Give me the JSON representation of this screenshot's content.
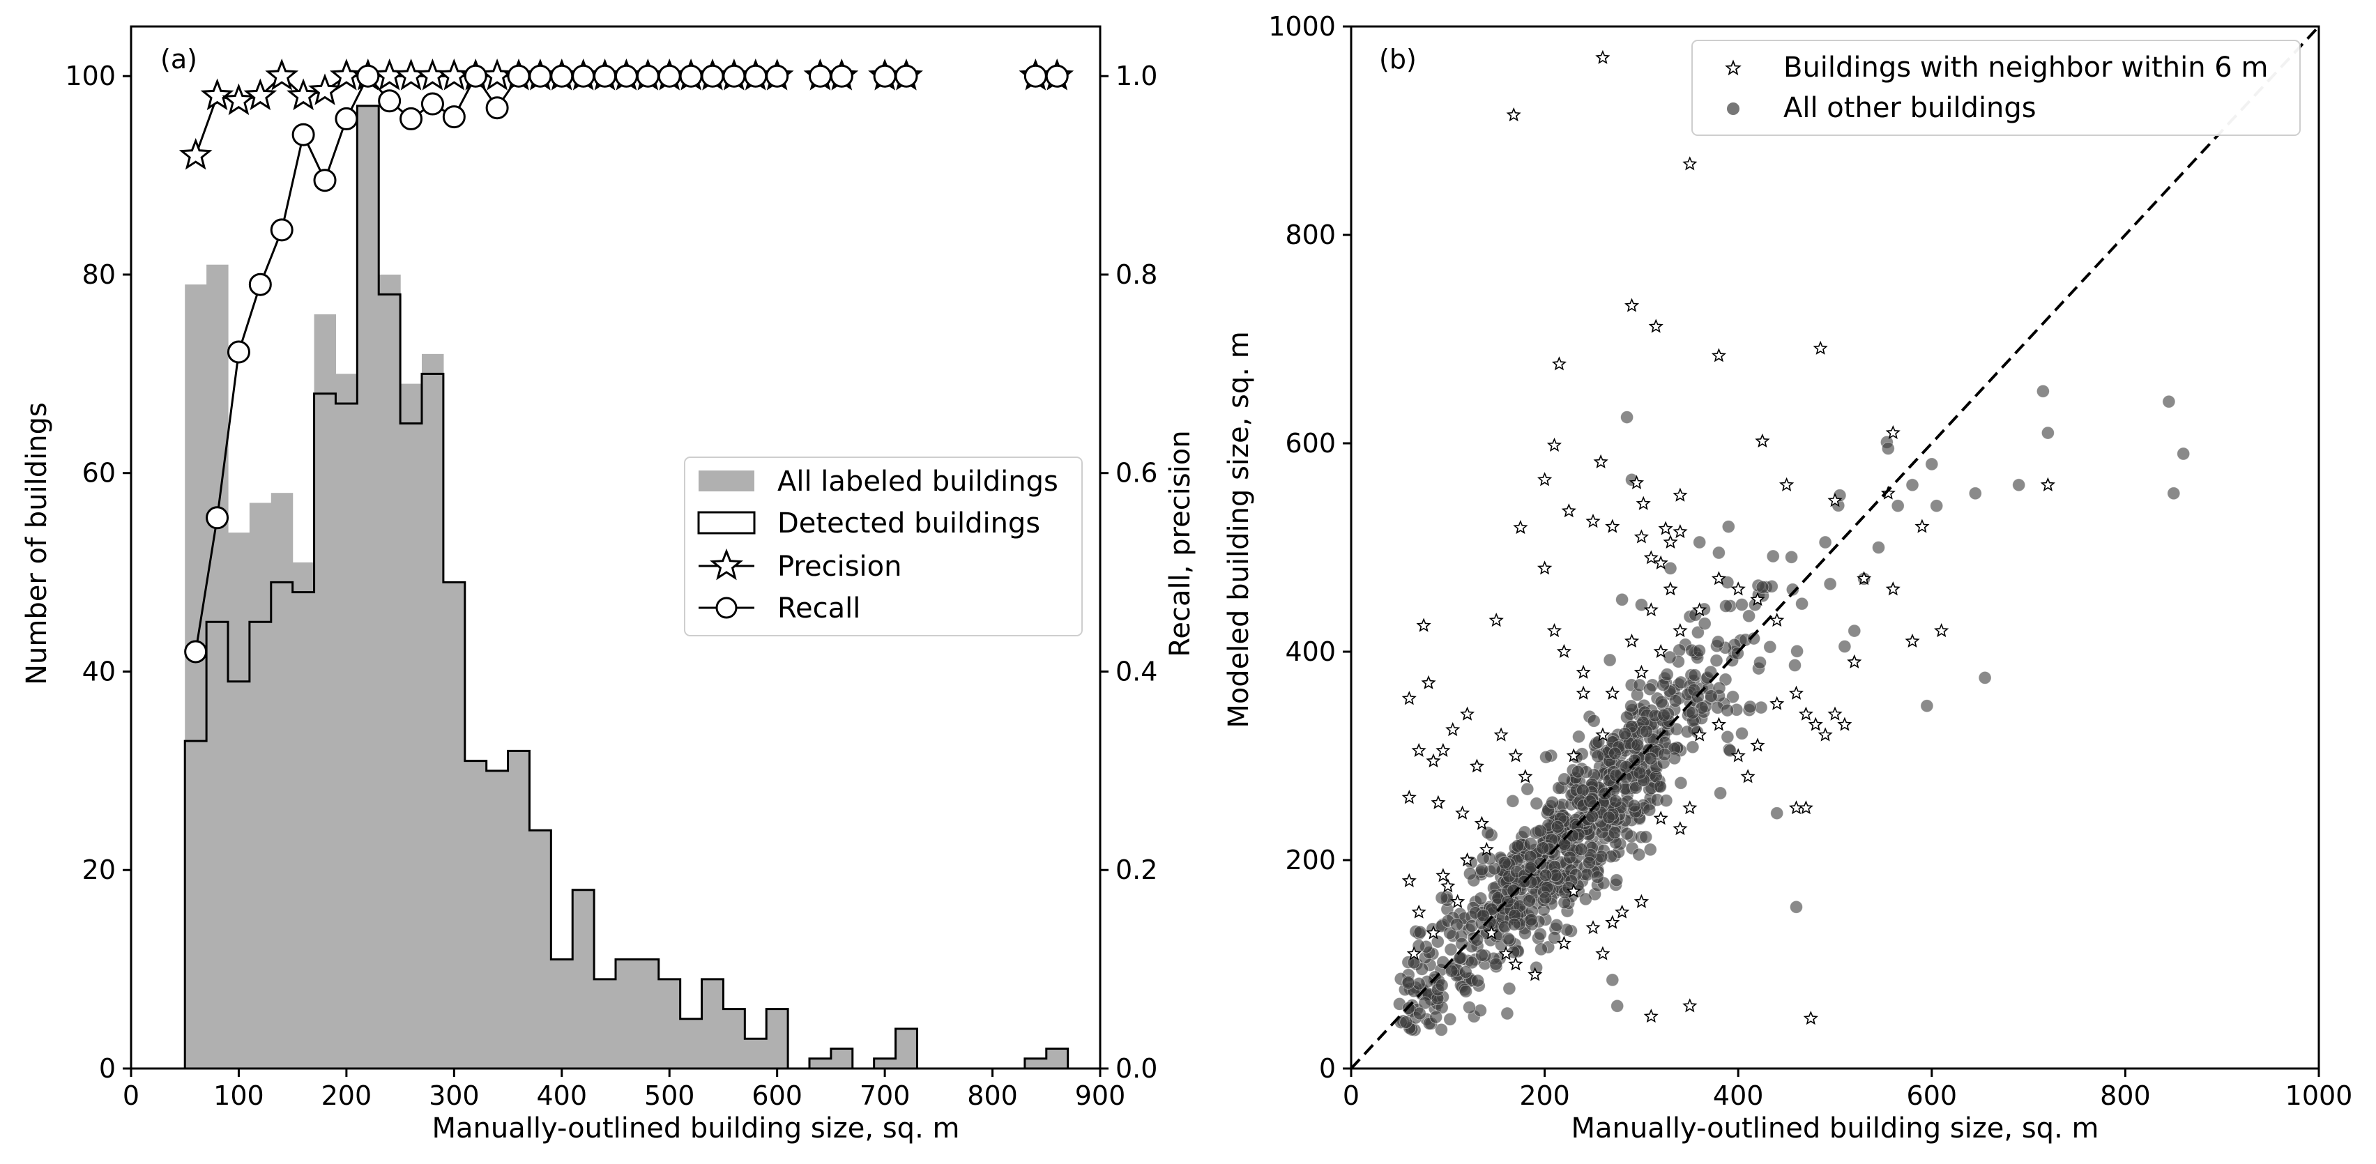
{
  "chart_data": [
    {
      "type": "bar",
      "panel_label": "(a)",
      "xlabel": "Manually-outlined building size, sq. m",
      "ylabel": "Number of buildings",
      "ylabel_right": "Recall, precision",
      "xlim": [
        0,
        900
      ],
      "ylim": [
        0,
        105
      ],
      "ylim_right": [
        0,
        1.05
      ],
      "xticks": [
        "0",
        "100",
        "200",
        "300",
        "400",
        "500",
        "600",
        "700",
        "800",
        "900"
      ],
      "yticks": [
        "0",
        "20",
        "40",
        "60",
        "80",
        "100"
      ],
      "yticks_right": [
        "0.0",
        "0.2",
        "0.4",
        "0.6",
        "0.8",
        "1.0"
      ],
      "bin_edges": [
        50,
        70,
        90,
        110,
        130,
        150,
        170,
        190,
        210,
        230,
        250,
        270,
        290,
        310,
        330,
        350,
        370,
        390,
        410,
        430,
        450,
        470,
        490,
        510,
        530,
        550,
        570,
        590,
        610,
        630,
        650,
        670,
        690,
        710,
        730,
        750,
        770,
        790,
        810,
        830,
        850,
        870
      ],
      "series": [
        {
          "name": "All labeled buildings",
          "style": "filled-gray",
          "values": [
            79,
            81,
            54,
            57,
            58,
            51,
            76,
            70,
            97,
            80,
            69,
            72,
            49,
            31,
            30,
            32,
            24,
            11,
            18,
            9,
            11,
            11,
            9,
            5,
            9,
            6,
            3,
            6,
            0,
            1,
            2,
            0,
            1,
            4,
            0,
            0,
            0,
            0,
            0,
            1,
            2
          ]
        },
        {
          "name": "Detected buildings",
          "style": "step-outline",
          "values": [
            33,
            45,
            39,
            45,
            49,
            48,
            68,
            67,
            97,
            78,
            65,
            70,
            49,
            31,
            30,
            32,
            24,
            11,
            18,
            9,
            11,
            11,
            9,
            5,
            9,
            6,
            3,
            6,
            0,
            1,
            2,
            0,
            1,
            4,
            0,
            0,
            0,
            0,
            0,
            1,
            2
          ]
        },
        {
          "name": "Precision",
          "axis": "right",
          "marker": "star",
          "x": [
            60,
            80,
            100,
            120,
            140,
            160,
            180,
            200,
            220,
            240,
            260,
            280,
            300,
            320,
            340,
            360,
            380,
            400,
            420,
            440,
            460,
            480,
            500,
            520,
            540,
            560,
            580,
            600,
            640,
            660,
            700,
            720,
            840,
            860
          ],
          "values": [
            0.92,
            0.98,
            0.975,
            0.98,
            1.0,
            0.98,
            0.985,
            1.0,
            1.0,
            1.0,
            1.0,
            1.0,
            1.0,
            1.0,
            1.0,
            1.0,
            1.0,
            1.0,
            1.0,
            1.0,
            1.0,
            1.0,
            1.0,
            1.0,
            1.0,
            1.0,
            1.0,
            1.0,
            1.0,
            1.0,
            1.0,
            1.0,
            1.0,
            1.0
          ]
        },
        {
          "name": "Recall",
          "axis": "right",
          "marker": "circle",
          "x": [
            60,
            80,
            100,
            120,
            140,
            160,
            180,
            200,
            220,
            240,
            260,
            280,
            300,
            320,
            340,
            360,
            380,
            400,
            420,
            440,
            460,
            480,
            500,
            520,
            540,
            560,
            580,
            600,
            640,
            660,
            700,
            720,
            840,
            860
          ],
          "values": [
            0.42,
            0.555,
            0.722,
            0.79,
            0.845,
            0.941,
            0.895,
            0.957,
            1.0,
            0.975,
            0.957,
            0.972,
            0.959,
            1.0,
            0.968,
            1.0,
            1.0,
            1.0,
            1.0,
            1.0,
            1.0,
            1.0,
            1.0,
            1.0,
            1.0,
            1.0,
            1.0,
            1.0,
            1.0,
            1.0,
            1.0,
            1.0,
            1.0,
            1.0
          ]
        }
      ],
      "legend": [
        "All labeled buildings",
        "Detected buildings",
        "Precision",
        "Recall"
      ],
      "legend_position": "center-right",
      "grid": false
    },
    {
      "type": "scatter",
      "panel_label": "(b)",
      "xlabel": "Manually-outlined building size, sq. m",
      "ylabel": "Modeled building size, sq. m",
      "xlim": [
        0,
        1000
      ],
      "ylim": [
        0,
        1000
      ],
      "xticks": [
        "0",
        "200",
        "400",
        "600",
        "800",
        "1000"
      ],
      "yticks": [
        "0",
        "200",
        "400",
        "600",
        "800",
        "1000"
      ],
      "reference_line": "1:1 dashed",
      "legend": [
        "Buildings with neighbor within 6 m",
        "All other buildings"
      ],
      "legend_position": "top-right",
      "grid": false,
      "series": [
        {
          "name": "Buildings with neighbor within 6 m",
          "marker": "star",
          "points": [
            [
              260,
              970
            ],
            [
              168,
              915
            ],
            [
              350,
              868
            ],
            [
              290,
              732
            ],
            [
              315,
              712
            ],
            [
              380,
              684
            ],
            [
              485,
              691
            ],
            [
              215,
              676
            ],
            [
              425,
              602
            ],
            [
              210,
              598
            ],
            [
              258,
              582
            ],
            [
              295,
              562
            ],
            [
              340,
              550
            ],
            [
              302,
              542
            ],
            [
              225,
              535
            ],
            [
              250,
              525
            ],
            [
              270,
              520
            ],
            [
              325,
              518
            ],
            [
              340,
              515
            ],
            [
              300,
              510
            ],
            [
              330,
              505
            ],
            [
              310,
              490
            ],
            [
              320,
              485
            ],
            [
              560,
              610
            ],
            [
              555,
              552
            ],
            [
              200,
              565
            ],
            [
              175,
              519
            ],
            [
              530,
              470
            ],
            [
              590,
              520
            ],
            [
              450,
              560
            ],
            [
              500,
              545
            ],
            [
              560,
              460
            ],
            [
              580,
              410
            ],
            [
              520,
              390
            ],
            [
              120,
              340
            ],
            [
              105,
              325
            ],
            [
              95,
              305
            ],
            [
              85,
              295
            ],
            [
              70,
              305
            ],
            [
              60,
              355
            ],
            [
              80,
              370
            ],
            [
              75,
              425
            ],
            [
              60,
              260
            ],
            [
              90,
              255
            ],
            [
              115,
              245
            ],
            [
              135,
              235
            ],
            [
              150,
              430
            ],
            [
              200,
              480
            ],
            [
              220,
              400
            ],
            [
              240,
              380
            ],
            [
              130,
              290
            ],
            [
              155,
              320
            ],
            [
              170,
              300
            ],
            [
              180,
              280
            ],
            [
              60,
              180
            ],
            [
              70,
              150
            ],
            [
              95,
              185
            ],
            [
              110,
              160
            ],
            [
              145,
              130
            ],
            [
              160,
              110
            ],
            [
              170,
              100
            ],
            [
              190,
              90
            ],
            [
              220,
              120
            ],
            [
              250,
              135
            ],
            [
              270,
              140
            ],
            [
              280,
              150
            ],
            [
              300,
              160
            ],
            [
              320,
              240
            ],
            [
              340,
              230
            ],
            [
              350,
              250
            ],
            [
              360,
              320
            ],
            [
              380,
              330
            ],
            [
              400,
              300
            ],
            [
              410,
              280
            ],
            [
              420,
              310
            ],
            [
              440,
              350
            ],
            [
              460,
              360
            ],
            [
              470,
              340
            ],
            [
              480,
              330
            ],
            [
              490,
              320
            ],
            [
              500,
              340
            ],
            [
              510,
              330
            ],
            [
              300,
              380
            ],
            [
              320,
              400
            ],
            [
              340,
              420
            ],
            [
              360,
              440
            ],
            [
              380,
              470
            ],
            [
              400,
              460
            ],
            [
              420,
              450
            ],
            [
              440,
              430
            ],
            [
              460,
              250
            ],
            [
              470,
              250
            ],
            [
              610,
              420
            ],
            [
              720,
              560
            ],
            [
              310,
              50
            ],
            [
              350,
              60
            ],
            [
              475,
              48
            ],
            [
              260,
              110
            ],
            [
              230,
              300
            ],
            [
              260,
              320
            ],
            [
              270,
              360
            ],
            [
              290,
              410
            ],
            [
              310,
              440
            ],
            [
              330,
              460
            ],
            [
              210,
              420
            ],
            [
              240,
              360
            ],
            [
              230,
              170
            ],
            [
              140,
              210
            ],
            [
              120,
              200
            ],
            [
              100,
              175
            ],
            [
              85,
              130
            ],
            [
              65,
              110
            ]
          ]
        },
        {
          "name": "All other buildings",
          "marker": "circle",
          "generator": "cluster_along_1to1",
          "n": 900,
          "notable_points": [
            [
              845,
              640
            ],
            [
              860,
              590
            ],
            [
              850,
              552
            ],
            [
              715,
              650
            ],
            [
              720,
              610
            ],
            [
              690,
              560
            ],
            [
              645,
              552
            ],
            [
              600,
              580
            ],
            [
              605,
              540
            ],
            [
              595,
              348
            ],
            [
              655,
              375
            ],
            [
              580,
              560
            ],
            [
              555,
              595
            ],
            [
              565,
              540
            ],
            [
              545,
              500
            ],
            [
              530,
              470
            ],
            [
              520,
              420
            ],
            [
              510,
              405
            ],
            [
              490,
              505
            ],
            [
              495,
              465
            ],
            [
              505,
              550
            ],
            [
              460,
              155
            ],
            [
              440,
              245
            ],
            [
              285,
              625
            ],
            [
              290,
              565
            ],
            [
              390,
              520
            ],
            [
              380,
              495
            ],
            [
              360,
              505
            ],
            [
              330,
              480
            ],
            [
              300,
              445
            ],
            [
              280,
              450
            ],
            [
              275,
              60
            ],
            [
              270,
              85
            ]
          ]
        }
      ]
    }
  ]
}
